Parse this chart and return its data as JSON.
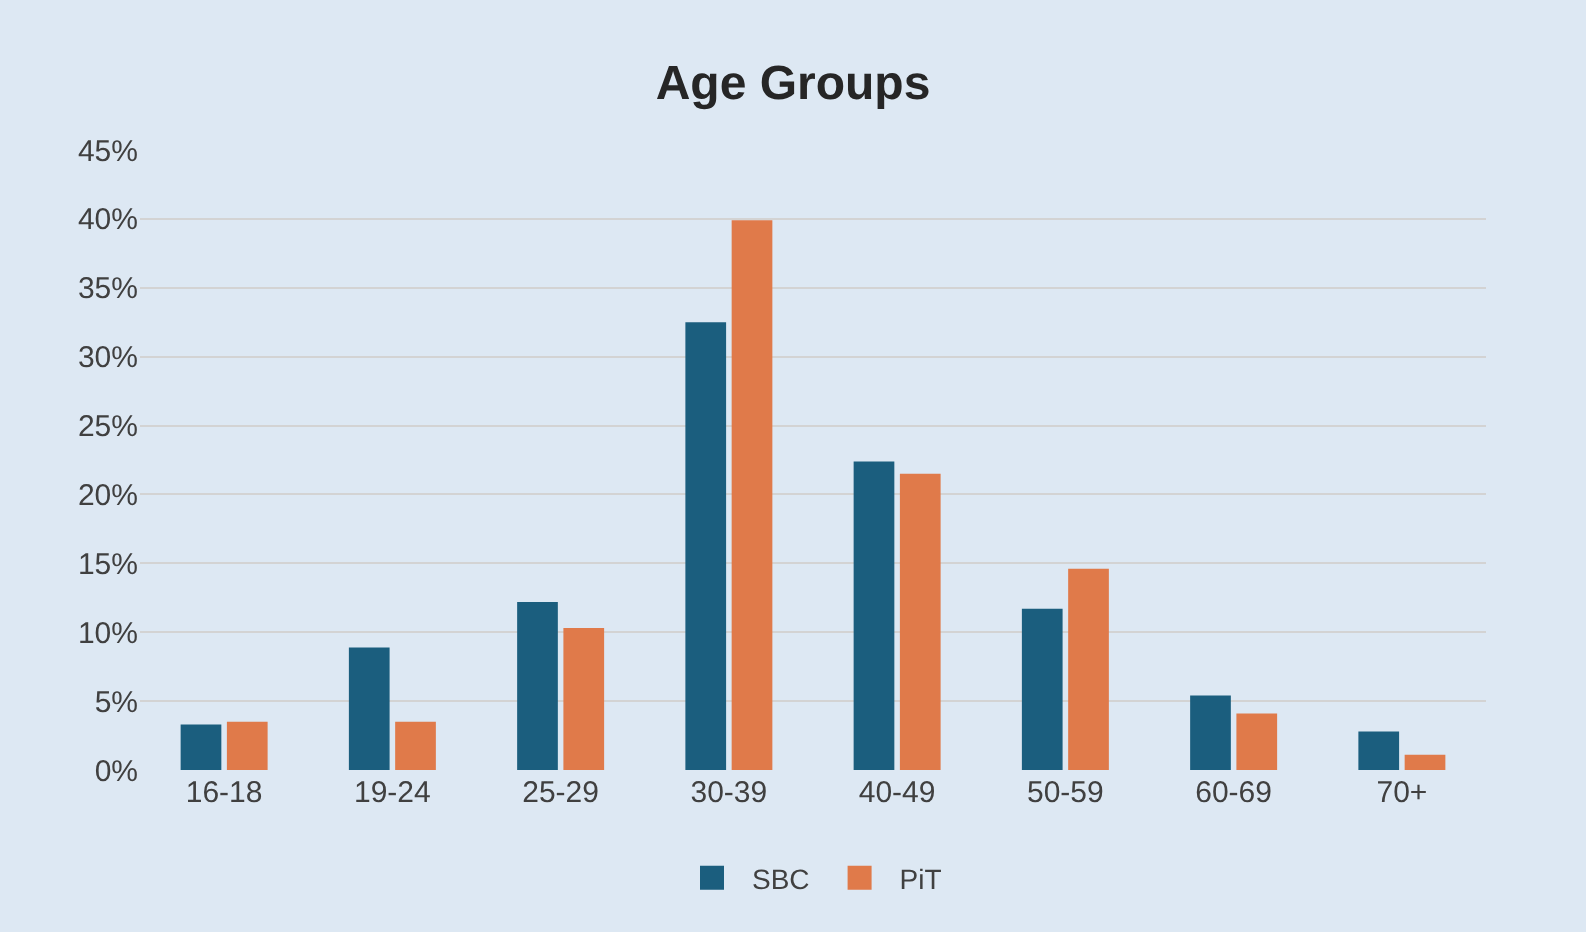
{
  "chart_data": {
    "type": "bar",
    "title": "Age Groups",
    "categories": [
      "16-18",
      "19-24",
      "25-29",
      "30-39",
      "40-49",
      "50-59",
      "60-69",
      "70+"
    ],
    "series": [
      {
        "name": "SBC",
        "color": "#1b5e7e",
        "values": [
          3.3,
          8.9,
          12.2,
          32.5,
          22.4,
          11.7,
          5.4,
          2.8
        ]
      },
      {
        "name": "PiT",
        "color": "#e07a4a",
        "values": [
          3.5,
          3.5,
          10.3,
          39.9,
          21.5,
          14.6,
          4.1,
          1.1
        ]
      }
    ],
    "ylim": [
      0,
      45
    ],
    "yticks": [
      {
        "value": 0,
        "label": "0%"
      },
      {
        "value": 5,
        "label": "5%"
      },
      {
        "value": 10,
        "label": "10%"
      },
      {
        "value": 15,
        "label": "15%"
      },
      {
        "value": 20,
        "label": "20%"
      },
      {
        "value": 25,
        "label": "25%"
      },
      {
        "value": 30,
        "label": "30%"
      },
      {
        "value": 35,
        "label": "35%"
      },
      {
        "value": 40,
        "label": "40%"
      },
      {
        "value": 45,
        "label": "45%"
      }
    ],
    "grid": "y",
    "legend": "bottom"
  }
}
